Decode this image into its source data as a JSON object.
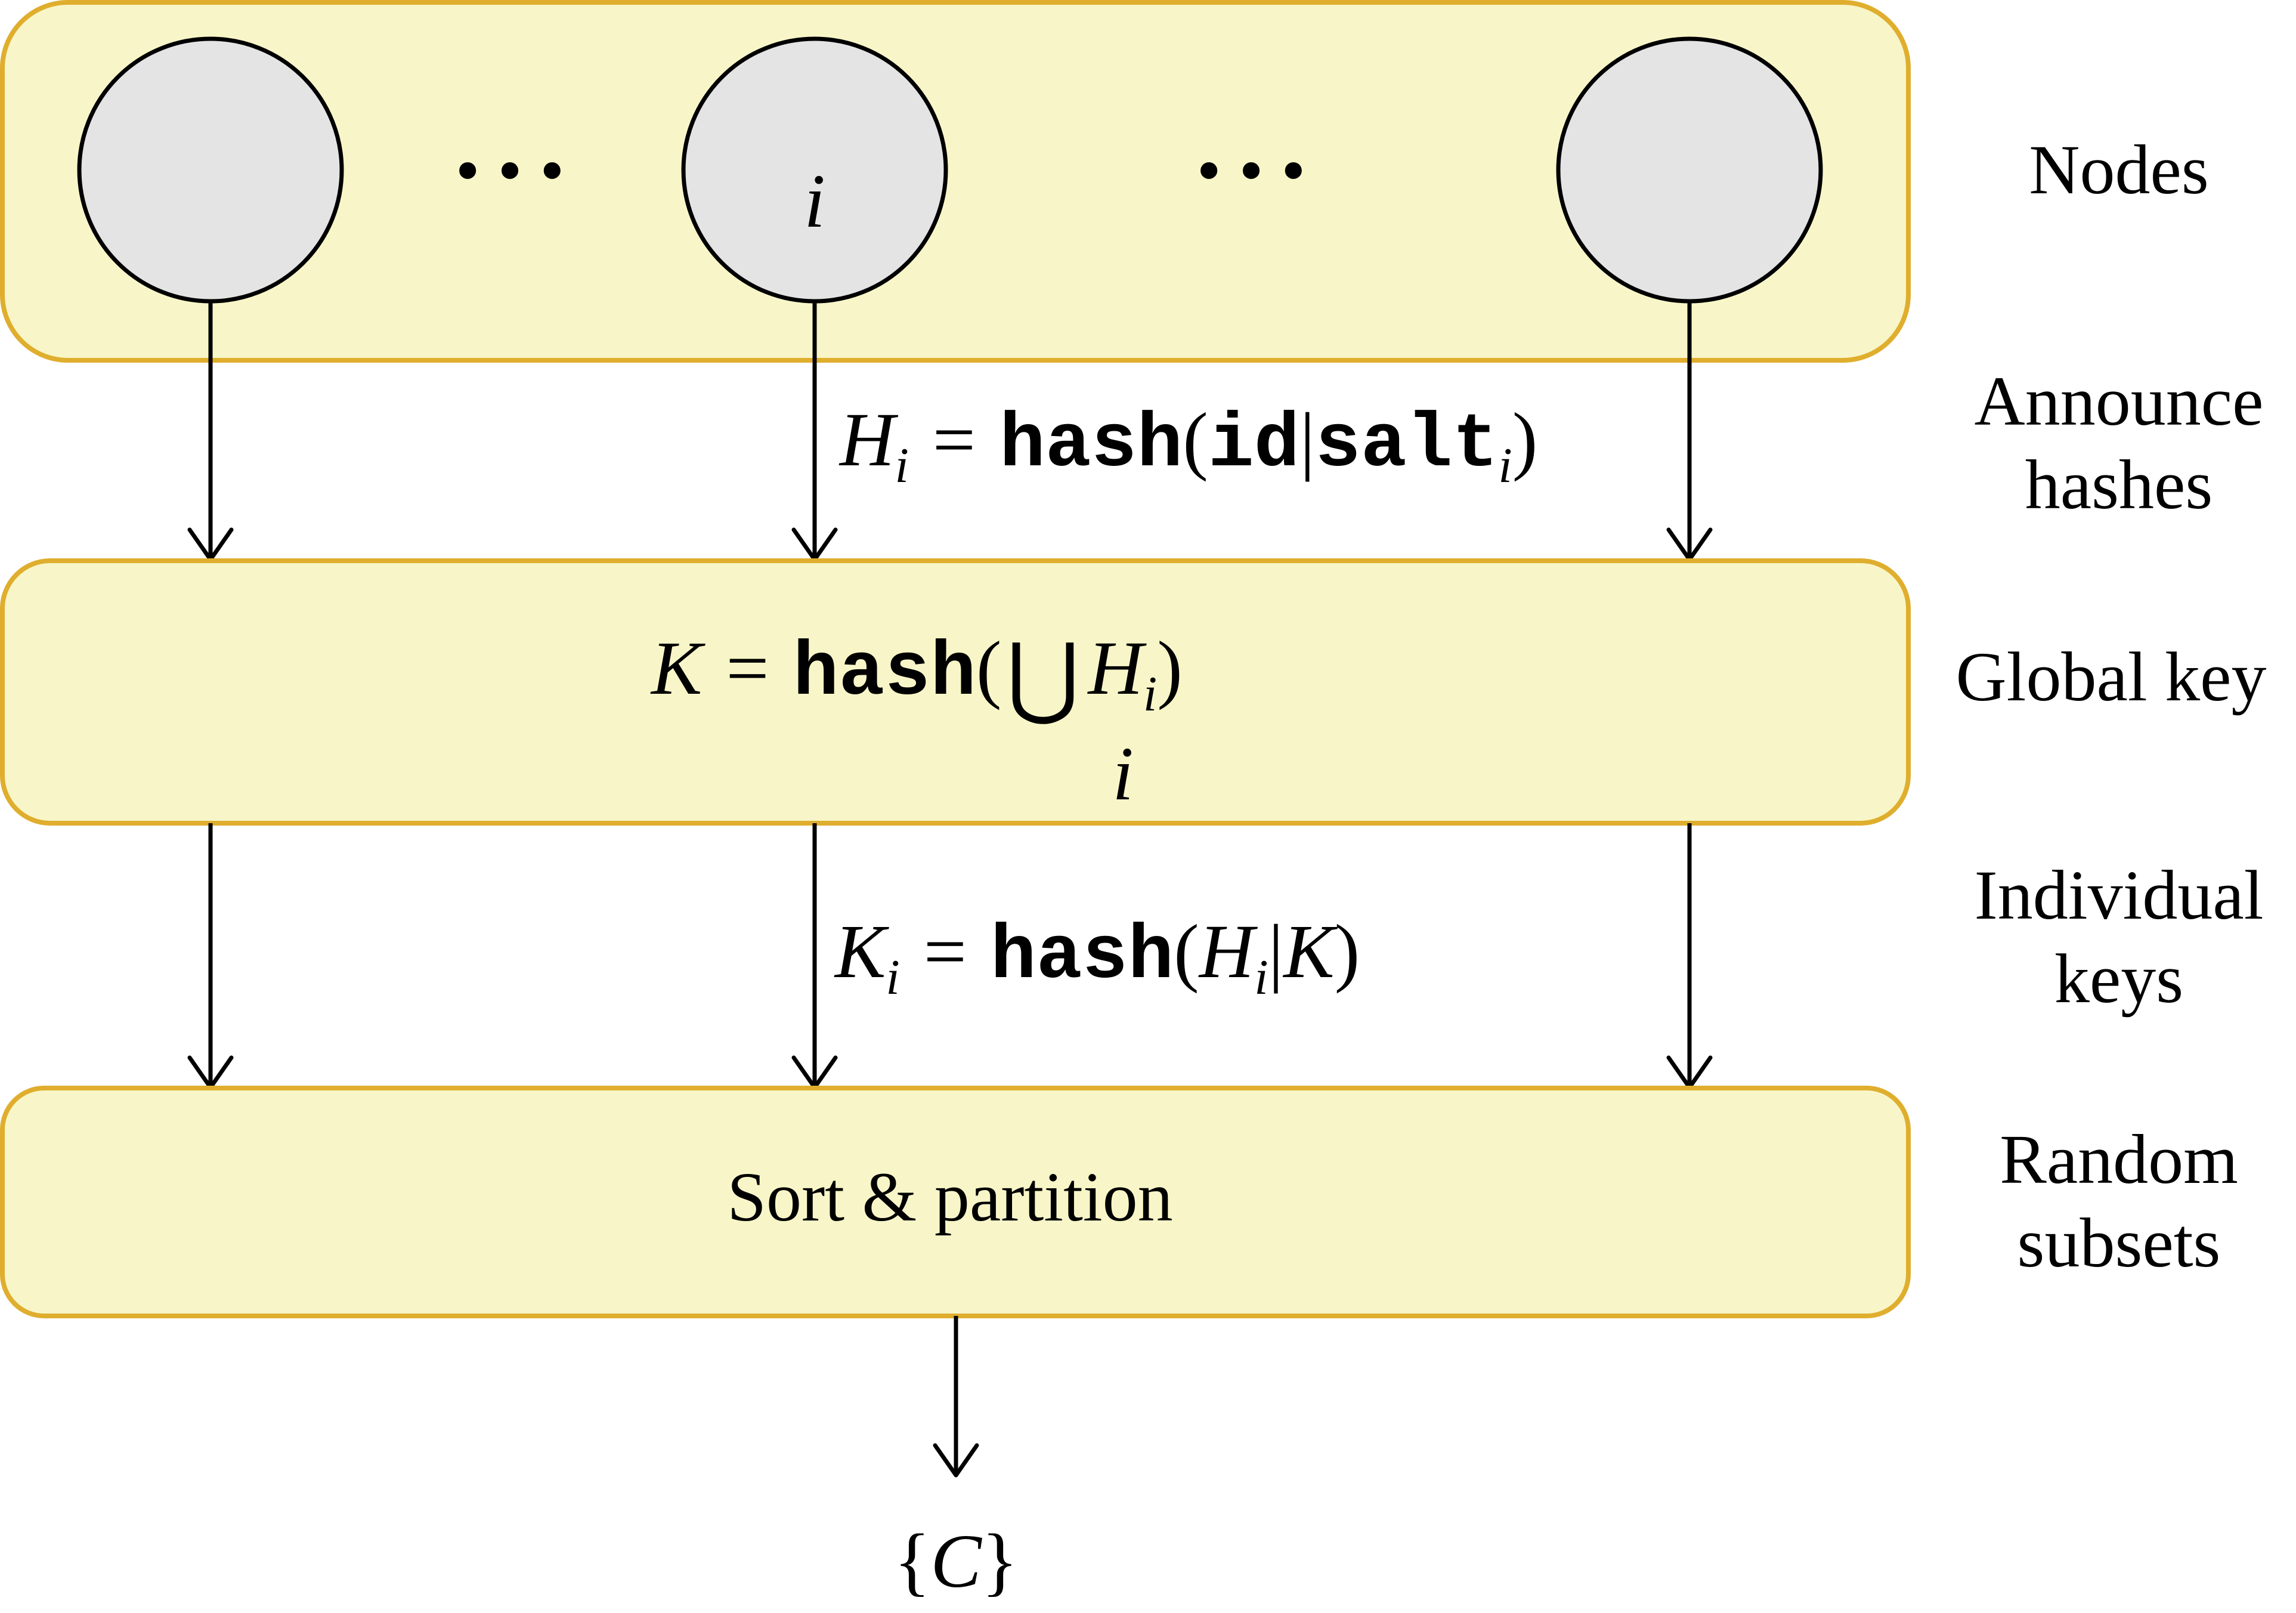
{
  "diagram": {
    "node_label": "i",
    "ellipsis": "• • •",
    "stages": [
      {
        "label_lines": [
          "Nodes"
        ]
      },
      {
        "label_lines": [
          "Announce",
          "hashes"
        ]
      },
      {
        "label_lines": [
          "Global key"
        ]
      },
      {
        "label_lines": [
          "Individual",
          "keys"
        ]
      },
      {
        "label_lines": [
          "Random",
          "subsets"
        ]
      }
    ],
    "announce": {
      "lhs": "H",
      "lhs_sub": "i",
      "eq": "=",
      "fn": "hash",
      "open": "(",
      "arg1": "id",
      "bar": "|",
      "arg2": "salt",
      "arg2_sub": "i",
      "close": ")"
    },
    "global_key": {
      "lhs": "K",
      "eq": "=",
      "fn": "hash",
      "open": "(",
      "union": "⋃",
      "union_sub": "i",
      "term": "H",
      "term_sub": "i",
      "close": ")"
    },
    "individual": {
      "lhs": "K",
      "lhs_sub": "i",
      "eq": "=",
      "fn": "hash",
      "open": "(",
      "arg1": "H",
      "arg1_sub": "i",
      "bar": "|",
      "arg2": "K",
      "close": ")"
    },
    "partition_label": "Sort & partition",
    "output": {
      "open": "{",
      "symbol": "C",
      "close": "}"
    },
    "colors": {
      "box_fill": "#F8F6C8",
      "box_stroke": "#E0AE2E",
      "node_fill": "#E4E4E4"
    }
  }
}
